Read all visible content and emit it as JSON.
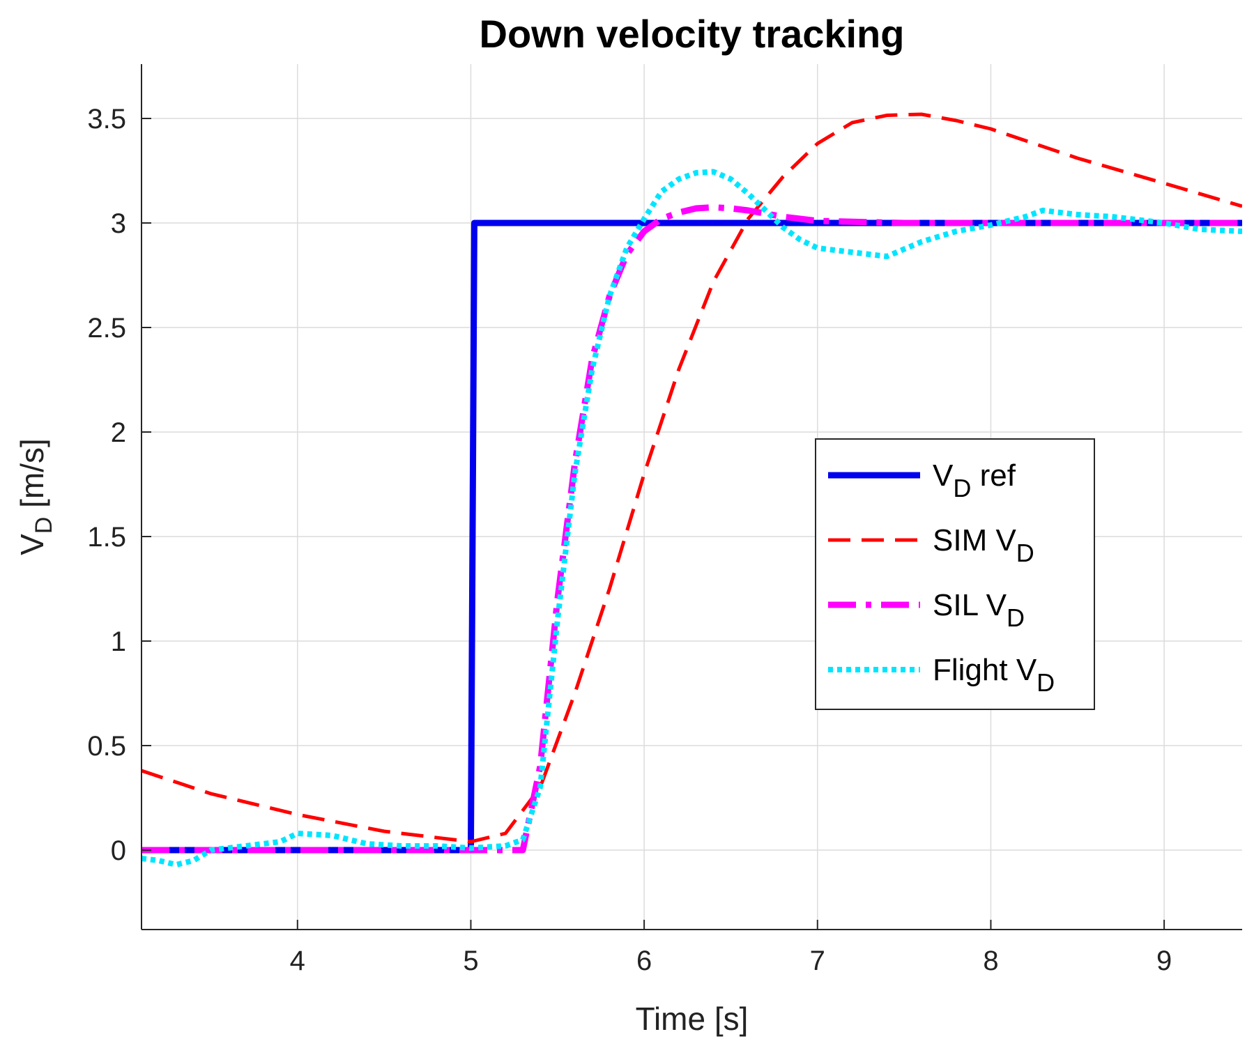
{
  "chart_data": {
    "type": "line",
    "title": "Down velocity tracking",
    "xlabel": "Time [s]",
    "ylabel": {
      "base": "V",
      "sub": "D",
      "rest": " [m/s]"
    },
    "xlim": [
      3.1,
      9.45
    ],
    "ylim": [
      -0.38,
      3.76
    ],
    "xticks": [
      4,
      5,
      6,
      7,
      8,
      9
    ],
    "xtick_labels": [
      "4",
      "5",
      "6",
      "7",
      "8",
      "9"
    ],
    "yticks": [
      0,
      0.5,
      1,
      1.5,
      2,
      2.5,
      3,
      3.5
    ],
    "ytick_labels": [
      "0",
      "0.5",
      "1",
      "1.5",
      "2",
      "2.5",
      "3",
      "3.5"
    ],
    "grid": true,
    "legend_position": "center-right",
    "series": [
      {
        "name": "V_D ref",
        "legend": {
          "prefix": "V",
          "sub": "D",
          "suffix": " ref"
        },
        "color": "#0000ee",
        "dash": "solid",
        "x": [
          3.1,
          5.0,
          5.0,
          5.02,
          9.45
        ],
        "y": [
          0,
          0,
          0,
          3.0,
          3.0
        ]
      },
      {
        "name": "SIM V_D",
        "legend": {
          "prefix": "SIM V",
          "sub": "D",
          "suffix": ""
        },
        "color": "#ff0000",
        "dash": "dashed",
        "x": [
          3.1,
          3.5,
          4.0,
          4.5,
          5.0,
          5.2,
          5.4,
          5.6,
          5.8,
          6.0,
          6.2,
          6.4,
          6.6,
          6.8,
          7.0,
          7.2,
          7.4,
          7.6,
          7.8,
          8.0,
          8.5,
          9.0,
          9.45
        ],
        "y": [
          0.38,
          0.27,
          0.17,
          0.09,
          0.04,
          0.08,
          0.3,
          0.75,
          1.25,
          1.8,
          2.3,
          2.72,
          3.02,
          3.22,
          3.38,
          3.48,
          3.515,
          3.52,
          3.49,
          3.45,
          3.31,
          3.19,
          3.08
        ]
      },
      {
        "name": "SIL V_D",
        "legend": {
          "prefix": "SIL V",
          "sub": "D",
          "suffix": ""
        },
        "color": "#ff00ff",
        "dash": "dashdot",
        "x": [
          3.1,
          5.0,
          5.3,
          5.4,
          5.5,
          5.6,
          5.7,
          5.8,
          5.9,
          6.0,
          6.1,
          6.2,
          6.3,
          6.4,
          6.5,
          6.6,
          6.8,
          7.0,
          7.5,
          9.45
        ],
        "y": [
          0,
          0,
          0,
          0.4,
          1.2,
          1.85,
          2.35,
          2.65,
          2.85,
          2.96,
          3.02,
          3.05,
          3.07,
          3.075,
          3.07,
          3.06,
          3.03,
          3.01,
          3.0,
          3.0
        ]
      },
      {
        "name": "Flight V_D",
        "legend": {
          "prefix": "Flight V",
          "sub": "D",
          "suffix": ""
        },
        "color": "#00e5ff",
        "dash": "dotted",
        "x": [
          3.1,
          3.2,
          3.3,
          3.4,
          3.5,
          3.7,
          3.9,
          4.0,
          4.2,
          4.4,
          4.6,
          4.8,
          5.0,
          5.2,
          5.3,
          5.4,
          5.5,
          5.6,
          5.7,
          5.8,
          5.9,
          6.0,
          6.1,
          6.2,
          6.3,
          6.4,
          6.5,
          6.6,
          6.7,
          6.8,
          6.9,
          7.0,
          7.2,
          7.4,
          7.6,
          7.8,
          8.0,
          8.2,
          8.3,
          8.5,
          8.7,
          9.0,
          9.2,
          9.45
        ],
        "y": [
          -0.04,
          -0.05,
          -0.07,
          -0.05,
          0.0,
          0.02,
          0.04,
          0.08,
          0.07,
          0.03,
          0.02,
          0.02,
          0.01,
          0.02,
          0.05,
          0.3,
          1.1,
          1.8,
          2.3,
          2.65,
          2.88,
          3.02,
          3.15,
          3.21,
          3.24,
          3.245,
          3.21,
          3.14,
          3.06,
          2.98,
          2.92,
          2.88,
          2.86,
          2.84,
          2.91,
          2.96,
          2.99,
          3.03,
          3.06,
          3.04,
          3.03,
          3.0,
          2.97,
          2.96
        ]
      }
    ]
  }
}
